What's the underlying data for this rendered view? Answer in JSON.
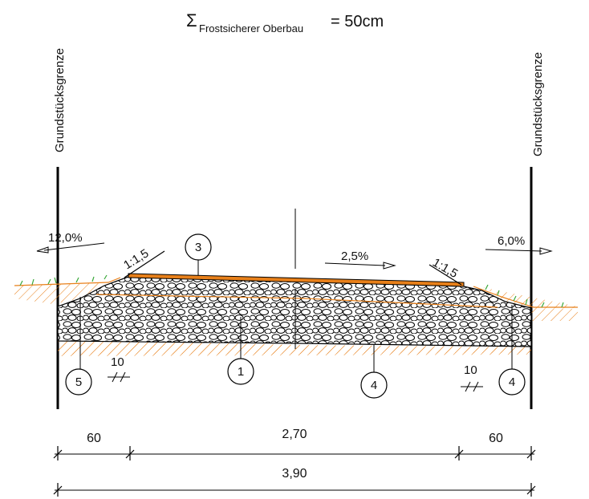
{
  "title": {
    "sigma": "Σ",
    "subscript": "Frostsicherer Oberbau",
    "value": "= 50cm"
  },
  "boundary": {
    "left": "Grundstücksgrenze",
    "right": "Grundstücksgrenze"
  },
  "slopes": {
    "left_cross_slope": "12,0%",
    "right_cross_slope": "6,0%",
    "road_cross_slope": "2,5%",
    "left_embankment": "1:1,5",
    "right_embankment": "1:1,5"
  },
  "callouts": [
    "1",
    "3",
    "4",
    "5",
    "4"
  ],
  "thickness": {
    "left": "10",
    "right": "10"
  },
  "dimensions": {
    "left_width": "60",
    "center_width": "2,70",
    "right_width": "60",
    "total_width": "3,90"
  },
  "colors": {
    "orange": "#e8801a",
    "grass": "#3aa83a",
    "line": "#000000"
  }
}
